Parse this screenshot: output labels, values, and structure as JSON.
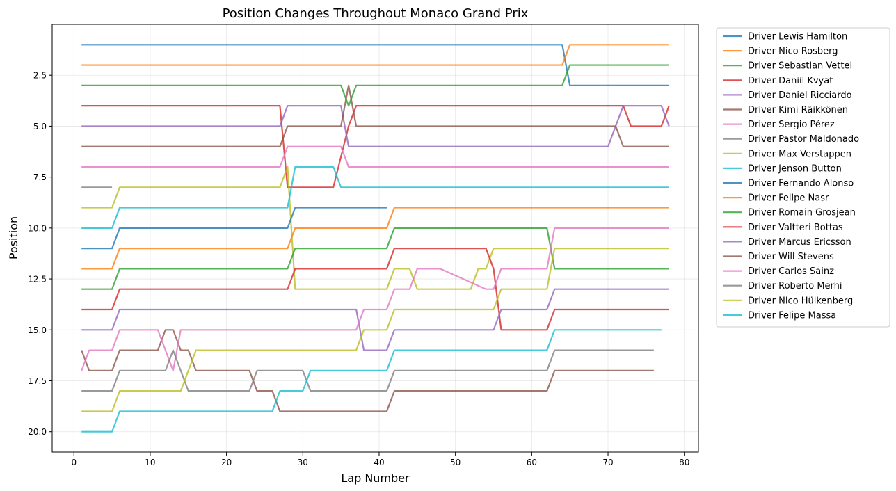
{
  "chart_data": {
    "type": "line",
    "title": "Position Changes Throughout Monaco Grand Prix",
    "xlabel": "Lap Number",
    "ylabel": "Position",
    "xlim": [
      -2.85,
      81.85
    ],
    "ylim": [
      21,
      0
    ],
    "y_inverted": true,
    "xticks": [
      0,
      10,
      20,
      30,
      40,
      50,
      60,
      70,
      80
    ],
    "yticks": [
      2.5,
      5.0,
      7.5,
      10.0,
      12.5,
      15.0,
      17.5,
      20.0
    ],
    "ytick_labels": [
      "2.5",
      "5.0",
      "7.5",
      "10.0",
      "12.5",
      "15.0",
      "17.5",
      "20.0"
    ],
    "grid": true,
    "legend_position": "outside-right",
    "series": [
      {
        "name": "Driver Lewis Hamilton",
        "color": "#1f77b4",
        "points": [
          [
            1,
            1
          ],
          [
            64,
            1
          ],
          [
            65,
            3
          ],
          [
            78,
            3
          ]
        ]
      },
      {
        "name": "Driver Nico Rosberg",
        "color": "#ff7f0e",
        "points": [
          [
            1,
            2
          ],
          [
            64,
            2
          ],
          [
            65,
            1
          ],
          [
            78,
            1
          ]
        ]
      },
      {
        "name": "Driver Sebastian Vettel",
        "color": "#2ca02c",
        "points": [
          [
            1,
            3
          ],
          [
            35,
            3
          ],
          [
            36,
            4
          ],
          [
            37,
            3
          ],
          [
            64,
            3
          ],
          [
            65,
            2
          ],
          [
            78,
            2
          ]
        ]
      },
      {
        "name": "Driver Daniil Kvyat",
        "color": "#d62728",
        "points": [
          [
            1,
            4
          ],
          [
            27,
            4
          ],
          [
            28,
            8
          ],
          [
            34,
            8
          ],
          [
            36,
            5
          ],
          [
            37,
            4
          ],
          [
            72,
            4
          ],
          [
            73,
            5
          ],
          [
            77,
            5
          ],
          [
            78,
            4
          ]
        ]
      },
      {
        "name": "Driver Daniel Ricciardo",
        "color": "#9467bd",
        "points": [
          [
            1,
            5
          ],
          [
            27,
            5
          ],
          [
            28,
            4
          ],
          [
            35,
            4
          ],
          [
            36,
            6
          ],
          [
            70,
            6
          ],
          [
            72,
            4
          ],
          [
            77,
            4
          ],
          [
            78,
            5
          ]
        ]
      },
      {
        "name": "Driver Kimi Räikkönen",
        "color": "#8c564b",
        "points": [
          [
            1,
            6
          ],
          [
            27,
            6
          ],
          [
            28,
            5
          ],
          [
            35,
            5
          ],
          [
            36,
            3
          ],
          [
            37,
            5
          ],
          [
            71,
            5
          ],
          [
            72,
            6
          ],
          [
            78,
            6
          ]
        ]
      },
      {
        "name": "Driver Sergio Pérez",
        "color": "#e377c2",
        "points": [
          [
            1,
            7
          ],
          [
            27,
            7
          ],
          [
            28,
            6
          ],
          [
            35,
            6
          ],
          [
            36,
            7
          ],
          [
            78,
            7
          ]
        ]
      },
      {
        "name": "Driver Pastor Maldonado",
        "color": "#7f7f7f",
        "points": [
          [
            1,
            8
          ],
          [
            5,
            8
          ]
        ]
      },
      {
        "name": "Driver Max Verstappen",
        "color": "#bcbd22",
        "points": [
          [
            1,
            9
          ],
          [
            5,
            9
          ],
          [
            6,
            8
          ],
          [
            27,
            8
          ],
          [
            28,
            7
          ],
          [
            29,
            13
          ],
          [
            41,
            13
          ],
          [
            42,
            12
          ],
          [
            44,
            12
          ],
          [
            45,
            13
          ],
          [
            52,
            13
          ],
          [
            53,
            12
          ],
          [
            54,
            12
          ],
          [
            55,
            11
          ],
          [
            62,
            11
          ]
        ]
      },
      {
        "name": "Driver Jenson Button",
        "color": "#17becf",
        "points": [
          [
            1,
            10
          ],
          [
            5,
            10
          ],
          [
            6,
            9
          ],
          [
            28,
            9
          ],
          [
            29,
            7
          ],
          [
            34,
            7
          ],
          [
            35,
            8
          ],
          [
            78,
            8
          ]
        ]
      },
      {
        "name": "Driver Fernando Alonso",
        "color": "#1f77b4",
        "points": [
          [
            1,
            11
          ],
          [
            5,
            11
          ],
          [
            6,
            10
          ],
          [
            28,
            10
          ],
          [
            29,
            9
          ],
          [
            41,
            9
          ]
        ]
      },
      {
        "name": "Driver Felipe Nasr",
        "color": "#ff7f0e",
        "points": [
          [
            1,
            12
          ],
          [
            5,
            12
          ],
          [
            6,
            11
          ],
          [
            28,
            11
          ],
          [
            29,
            10
          ],
          [
            41,
            10
          ],
          [
            42,
            9
          ],
          [
            78,
            9
          ]
        ]
      },
      {
        "name": "Driver Romain Grosjean",
        "color": "#2ca02c",
        "points": [
          [
            1,
            13
          ],
          [
            5,
            13
          ],
          [
            6,
            12
          ],
          [
            28,
            12
          ],
          [
            29,
            11
          ],
          [
            41,
            11
          ],
          [
            42,
            10
          ],
          [
            62,
            10
          ],
          [
            63,
            12
          ],
          [
            78,
            12
          ]
        ]
      },
      {
        "name": "Driver Valtteri Bottas",
        "color": "#d62728",
        "points": [
          [
            1,
            14
          ],
          [
            5,
            14
          ],
          [
            6,
            13
          ],
          [
            28,
            13
          ],
          [
            29,
            12
          ],
          [
            41,
            12
          ],
          [
            42,
            11
          ],
          [
            54,
            11
          ],
          [
            55,
            12
          ],
          [
            56,
            15
          ],
          [
            62,
            15
          ],
          [
            63,
            14
          ],
          [
            78,
            14
          ]
        ]
      },
      {
        "name": "Driver Marcus Ericsson",
        "color": "#9467bd",
        "points": [
          [
            1,
            15
          ],
          [
            5,
            15
          ],
          [
            6,
            14
          ],
          [
            37,
            14
          ],
          [
            38,
            16
          ],
          [
            41,
            16
          ],
          [
            42,
            15
          ],
          [
            55,
            15
          ],
          [
            56,
            14
          ],
          [
            62,
            14
          ],
          [
            63,
            13
          ],
          [
            78,
            13
          ]
        ]
      },
      {
        "name": "Driver Will Stevens",
        "color": "#8c564b",
        "points": [
          [
            1,
            16
          ],
          [
            2,
            17
          ],
          [
            5,
            17
          ],
          [
            6,
            16
          ],
          [
            11,
            16
          ],
          [
            12,
            15
          ],
          [
            13,
            15
          ],
          [
            14,
            16
          ],
          [
            15,
            16
          ],
          [
            16,
            17
          ],
          [
            23,
            17
          ],
          [
            24,
            18
          ],
          [
            26,
            18
          ],
          [
            27,
            19
          ],
          [
            41,
            19
          ],
          [
            42,
            18
          ],
          [
            62,
            18
          ],
          [
            63,
            17
          ],
          [
            76,
            17
          ]
        ]
      },
      {
        "name": "Driver Carlos Sainz",
        "color": "#e377c2",
        "points": [
          [
            1,
            17
          ],
          [
            2,
            16
          ],
          [
            5,
            16
          ],
          [
            6,
            15
          ],
          [
            11,
            15
          ],
          [
            13,
            17
          ],
          [
            14,
            15
          ],
          [
            37,
            15
          ],
          [
            38,
            14
          ],
          [
            41,
            14
          ],
          [
            42,
            13
          ],
          [
            44,
            13
          ],
          [
            45,
            12
          ],
          [
            48,
            12
          ],
          [
            54,
            13
          ],
          [
            55,
            13
          ],
          [
            56,
            12
          ],
          [
            62,
            12
          ],
          [
            63,
            10
          ],
          [
            78,
            10
          ]
        ]
      },
      {
        "name": "Driver Roberto Merhi",
        "color": "#7f7f7f",
        "points": [
          [
            1,
            18
          ],
          [
            5,
            18
          ],
          [
            6,
            17
          ],
          [
            12,
            17
          ],
          [
            13,
            16
          ],
          [
            15,
            18
          ],
          [
            23,
            18
          ],
          [
            24,
            17
          ],
          [
            30,
            17
          ],
          [
            31,
            18
          ],
          [
            41,
            18
          ],
          [
            42,
            17
          ],
          [
            62,
            17
          ],
          [
            63,
            16
          ],
          [
            76,
            16
          ]
        ]
      },
      {
        "name": "Driver Nico Hülkenberg",
        "color": "#bcbd22",
        "points": [
          [
            1,
            19
          ],
          [
            5,
            19
          ],
          [
            6,
            18
          ],
          [
            14,
            18
          ],
          [
            16,
            16
          ],
          [
            37,
            16
          ],
          [
            38,
            15
          ],
          [
            41,
            15
          ],
          [
            42,
            14
          ],
          [
            55,
            14
          ],
          [
            56,
            13
          ],
          [
            62,
            13
          ],
          [
            63,
            11
          ],
          [
            78,
            11
          ]
        ]
      },
      {
        "name": "Driver Felipe Massa",
        "color": "#17becf",
        "points": [
          [
            1,
            20
          ],
          [
            5,
            20
          ],
          [
            6,
            19
          ],
          [
            26,
            19
          ],
          [
            27,
            18
          ],
          [
            30,
            18
          ],
          [
            31,
            17
          ],
          [
            41,
            17
          ],
          [
            42,
            16
          ],
          [
            62,
            16
          ],
          [
            63,
            15
          ],
          [
            77,
            15
          ]
        ]
      }
    ]
  }
}
